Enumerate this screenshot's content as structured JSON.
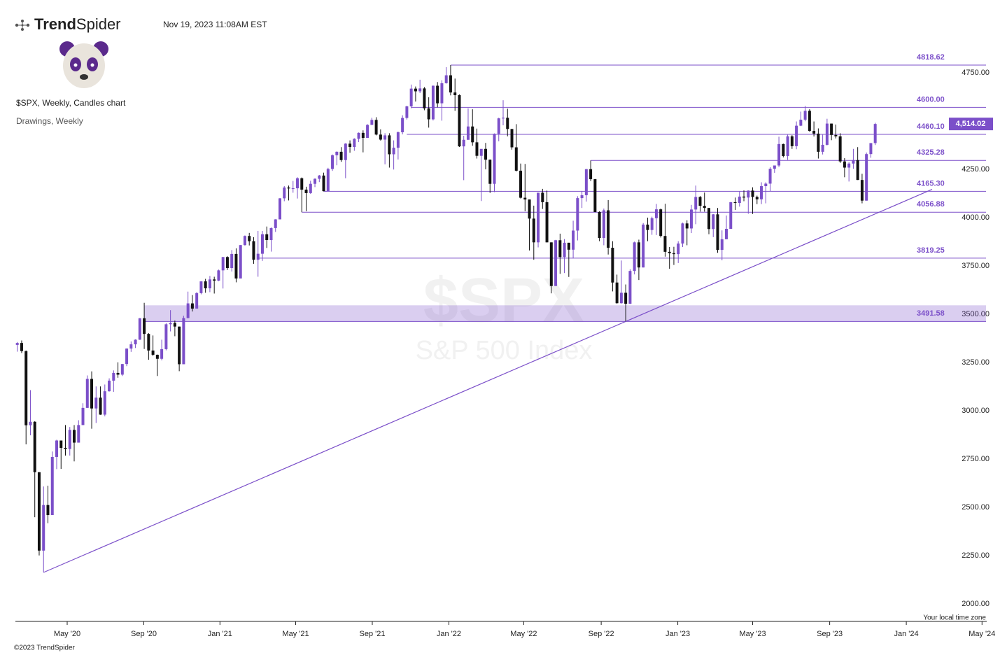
{
  "header": {
    "logo": {
      "bold": "Trend",
      "light": "Spider"
    },
    "timestamp": "Nov 19, 2023 11:08AM EST",
    "chart_name": "$SPX, Weekly, Candles chart",
    "drawings": "Drawings, Weekly",
    "timezone": "Your local time zone",
    "copyright": "©2023 TrendSpider"
  },
  "chart_data": {
    "type": "candlestick",
    "watermark": "$SPX",
    "watermark_sub": "S&P 500 Index",
    "up_color": "#7b4fc9",
    "down_color": "#111111",
    "last_price": {
      "value": 4514.02,
      "label": "4,514.02"
    },
    "ylim": [
      1975,
      4920
    ],
    "yticks": [
      {
        "value": 2000,
        "label": "2000.00"
      },
      {
        "value": 2250,
        "label": "2250.00"
      },
      {
        "value": 2500,
        "label": "2500.00"
      },
      {
        "value": 2750,
        "label": "2750.00"
      },
      {
        "value": 3000,
        "label": "3000.00"
      },
      {
        "value": 3250,
        "label": "3250.00"
      },
      {
        "value": 3500,
        "label": "3500.00"
      },
      {
        "value": 3750,
        "label": "3750.00"
      },
      {
        "value": 4000,
        "label": "4000.00"
      },
      {
        "value": 4250,
        "label": "4250.00"
      },
      {
        "value": 4750,
        "label": "4750.00"
      }
    ],
    "xticks": [
      {
        "value": 11.4,
        "label": "May '20"
      },
      {
        "value": 28.9,
        "label": "Sep '20"
      },
      {
        "value": 46.3,
        "label": "Jan '21"
      },
      {
        "value": 63.6,
        "label": "May '21"
      },
      {
        "value": 81.1,
        "label": "Sep '21"
      },
      {
        "value": 98.6,
        "label": "Jan '22"
      },
      {
        "value": 115.7,
        "label": "May '22"
      },
      {
        "value": 133.4,
        "label": "Sep '22"
      },
      {
        "value": 150.9,
        "label": "Jan '23"
      },
      {
        "value": 168.0,
        "label": "May '23"
      },
      {
        "value": 185.6,
        "label": "Sep '23"
      },
      {
        "value": 203.1,
        "label": "Jan '24"
      },
      {
        "value": 220.4,
        "label": "May '24"
      }
    ],
    "levels": [
      {
        "value": 4818.62,
        "label": "4818.62",
        "start": 99
      },
      {
        "value": 4600,
        "label": "4600.00",
        "start": 90
      },
      {
        "value": 4460.1,
        "label": "4460.10",
        "start": 89
      },
      {
        "value": 4325.28,
        "label": "4325.28",
        "start": 131
      },
      {
        "value": 4165.3,
        "label": "4165.30",
        "start": 70
      },
      {
        "value": 4056.88,
        "label": "4056.88",
        "start": 65
      },
      {
        "value": 3819.25,
        "label": "3819.25",
        "start": 55
      },
      {
        "value": 3491.58,
        "label": "3491.58",
        "start": 29,
        "zone_top": 3575
      }
    ],
    "trendline": {
      "x": [
        6,
        209
      ],
      "y": [
        2192,
        4175.5
      ]
    },
    "candles": [
      [
        3370,
        3385,
        3335,
        3380
      ],
      [
        3380,
        3393,
        3328,
        3338
      ],
      [
        3338,
        3341,
        2855,
        2954
      ],
      [
        2954,
        3136,
        2902,
        2972
      ],
      [
        2972,
        2975,
        2478,
        2711
      ],
      [
        2711,
        2711,
        2280,
        2305
      ],
      [
        2305,
        2637,
        2192,
        2541
      ],
      [
        2541,
        2641,
        2447,
        2489
      ],
      [
        2489,
        2818,
        2489,
        2790
      ],
      [
        2790,
        2879,
        2727,
        2875
      ],
      [
        2875,
        2875,
        2728,
        2837
      ],
      [
        2837,
        2955,
        2797,
        2831
      ],
      [
        2831,
        2945,
        2797,
        2930
      ],
      [
        2930,
        2955,
        2767,
        2864
      ],
      [
        2864,
        2980,
        2864,
        2955
      ],
      [
        2955,
        3068,
        2955,
        3044
      ],
      [
        3044,
        3212,
        3044,
        3194
      ],
      [
        3194,
        3233,
        2936,
        3041
      ],
      [
        3041,
        3155,
        2966,
        3097
      ],
      [
        3097,
        3155,
        3008,
        3009
      ],
      [
        3009,
        3165,
        3000,
        3130
      ],
      [
        3130,
        3197,
        3128,
        3185
      ],
      [
        3185,
        3238,
        3127,
        3225
      ],
      [
        3225,
        3280,
        3200,
        3216
      ],
      [
        3216,
        3272,
        3209,
        3271
      ],
      [
        3271,
        3352,
        3260,
        3351
      ],
      [
        3351,
        3388,
        3334,
        3373
      ],
      [
        3373,
        3399,
        3354,
        3397
      ],
      [
        3397,
        3509,
        3396,
        3508
      ],
      [
        3508,
        3588,
        3349,
        3427
      ],
      [
        3427,
        3431,
        3293,
        3341
      ],
      [
        3341,
        3419,
        3313,
        3319
      ],
      [
        3319,
        3320,
        3209,
        3298
      ],
      [
        3298,
        3397,
        3290,
        3348
      ],
      [
        3348,
        3482,
        3342,
        3477
      ],
      [
        3477,
        3550,
        3440,
        3484
      ],
      [
        3484,
        3496,
        3415,
        3465
      ],
      [
        3465,
        3465,
        3234,
        3270
      ],
      [
        3270,
        3521,
        3270,
        3509
      ],
      [
        3509,
        3646,
        3508,
        3585
      ],
      [
        3585,
        3628,
        3543,
        3558
      ],
      [
        3558,
        3644,
        3558,
        3638
      ],
      [
        3638,
        3699,
        3632,
        3699
      ],
      [
        3699,
        3712,
        3640,
        3663
      ],
      [
        3663,
        3727,
        3643,
        3709
      ],
      [
        3709,
        3723,
        3636,
        3703
      ],
      [
        3703,
        3760,
        3700,
        3756
      ],
      [
        3756,
        3826,
        3662,
        3825
      ],
      [
        3825,
        3829,
        3758,
        3768
      ],
      [
        3768,
        3861,
        3750,
        3841
      ],
      [
        3841,
        3870,
        3694,
        3714
      ],
      [
        3714,
        3887,
        3714,
        3887
      ],
      [
        3887,
        3937,
        3884,
        3934
      ],
      [
        3934,
        3950,
        3885,
        3907
      ],
      [
        3907,
        3928,
        3790,
        3811
      ],
      [
        3811,
        3960,
        3723,
        3842
      ],
      [
        3842,
        3960,
        3805,
        3943
      ],
      [
        3943,
        3983,
        3872,
        3913
      ],
      [
        3913,
        3978,
        3853,
        3975
      ],
      [
        3975,
        4021,
        3955,
        4020
      ],
      [
        4020,
        4130,
        4020,
        4129
      ],
      [
        4129,
        4192,
        4114,
        4185
      ],
      [
        4185,
        4195,
        4118,
        4180
      ],
      [
        4180,
        4219,
        4158,
        4181
      ],
      [
        4181,
        4238,
        4128,
        4233
      ],
      [
        4233,
        4237,
        4057,
        4174
      ],
      [
        4174,
        4189,
        4062,
        4156
      ],
      [
        4156,
        4220,
        4152,
        4204
      ],
      [
        4204,
        4233,
        4187,
        4230
      ],
      [
        4230,
        4250,
        4213,
        4247
      ],
      [
        4247,
        4262,
        4165,
        4166
      ],
      [
        4166,
        4287,
        4165,
        4281
      ],
      [
        4281,
        4356,
        4271,
        4352
      ],
      [
        4352,
        4372,
        4300,
        4370
      ],
      [
        4370,
        4394,
        4318,
        4327
      ],
      [
        4327,
        4415,
        4233,
        4412
      ],
      [
        4412,
        4429,
        4365,
        4395
      ],
      [
        4395,
        4440,
        4375,
        4437
      ],
      [
        4437,
        4470,
        4420,
        4468
      ],
      [
        4468,
        4481,
        4367,
        4442
      ],
      [
        4442,
        4513,
        4442,
        4509
      ],
      [
        4509,
        4546,
        4509,
        4535
      ],
      [
        4535,
        4549,
        4455,
        4459
      ],
      [
        4459,
        4486,
        4428,
        4433
      ],
      [
        4433,
        4466,
        4305,
        4455
      ],
      [
        4455,
        4466,
        4288,
        4357
      ],
      [
        4357,
        4429,
        4278,
        4391
      ],
      [
        4391,
        4475,
        4330,
        4471
      ],
      [
        4471,
        4559,
        4460,
        4545
      ],
      [
        4545,
        4608,
        4537,
        4605
      ],
      [
        4605,
        4718,
        4595,
        4697
      ],
      [
        4697,
        4708,
        4630,
        4683
      ],
      [
        4683,
        4743,
        4674,
        4698
      ],
      [
        4698,
        4705,
        4585,
        4595
      ],
      [
        4595,
        4652,
        4495,
        4538
      ],
      [
        4538,
        4713,
        4532,
        4712
      ],
      [
        4712,
        4731,
        4600,
        4621
      ],
      [
        4621,
        4740,
        4531,
        4725
      ],
      [
        4725,
        4808,
        4723,
        4766
      ],
      [
        4766,
        4819,
        4662,
        4677
      ],
      [
        4677,
        4749,
        4582,
        4663
      ],
      [
        4663,
        4667,
        4395,
        4398
      ],
      [
        4398,
        4453,
        4223,
        4432
      ],
      [
        4432,
        4595,
        4432,
        4501
      ],
      [
        4501,
        4590,
        4401,
        4419
      ],
      [
        4419,
        4490,
        4335,
        4349
      ],
      [
        4349,
        4362,
        4115,
        4385
      ],
      [
        4385,
        4416,
        4279,
        4329
      ],
      [
        4329,
        4330,
        4157,
        4204
      ],
      [
        4204,
        4465,
        4161,
        4463
      ],
      [
        4463,
        4546,
        4424,
        4543
      ],
      [
        4543,
        4637,
        4507,
        4546
      ],
      [
        4546,
        4593,
        4450,
        4488
      ],
      [
        4488,
        4488,
        4381,
        4393
      ],
      [
        4393,
        4513,
        4268,
        4272
      ],
      [
        4272,
        4309,
        4128,
        4132
      ],
      [
        4132,
        4307,
        4062,
        4123
      ],
      [
        4123,
        4123,
        3859,
        4024
      ],
      [
        4024,
        4091,
        3811,
        3901
      ],
      [
        3901,
        4158,
        3875,
        4158
      ],
      [
        4158,
        4178,
        4074,
        4109
      ],
      [
        4109,
        4169,
        3901,
        3901
      ],
      [
        3901,
        3901,
        3637,
        3675
      ],
      [
        3675,
        3914,
        3675,
        3912
      ],
      [
        3912,
        3946,
        3738,
        3825
      ],
      [
        3825,
        3918,
        3742,
        3899
      ],
      [
        3899,
        3899,
        3722,
        3863
      ],
      [
        3863,
        4013,
        3818,
        3962
      ],
      [
        3962,
        4140,
        3911,
        4130
      ],
      [
        4130,
        4167,
        4079,
        4145
      ],
      [
        4145,
        4281,
        4112,
        4280
      ],
      [
        4280,
        4325,
        4218,
        4228
      ],
      [
        4228,
        4229,
        4057,
        4058
      ],
      [
        4058,
        4062,
        3907,
        3924
      ],
      [
        3924,
        4076,
        3886,
        4067
      ],
      [
        4067,
        4120,
        3838,
        3873
      ],
      [
        3873,
        3907,
        3647,
        3693
      ],
      [
        3693,
        3734,
        3584,
        3586
      ],
      [
        3586,
        3807,
        3584,
        3640
      ],
      [
        3640,
        3683,
        3492,
        3583
      ],
      [
        3583,
        3762,
        3582,
        3753
      ],
      [
        3753,
        3905,
        3735,
        3901
      ],
      [
        3901,
        3915,
        3706,
        3771
      ],
      [
        3771,
        4001,
        3771,
        3993
      ],
      [
        3993,
        4029,
        3907,
        3965
      ],
      [
        3965,
        4034,
        3940,
        4026
      ],
      [
        4026,
        4100,
        3939,
        4072
      ],
      [
        4072,
        4076,
        3926,
        3934
      ],
      [
        3934,
        4101,
        3827,
        3852
      ],
      [
        3852,
        3877,
        3764,
        3845
      ],
      [
        3845,
        3878,
        3784,
        3840
      ],
      [
        3840,
        3907,
        3794,
        3895
      ],
      [
        3895,
        4003,
        3877,
        3999
      ],
      [
        3999,
        4015,
        3886,
        3973
      ],
      [
        3973,
        4095,
        3949,
        4071
      ],
      [
        4071,
        4195,
        3995,
        4136
      ],
      [
        4136,
        4141,
        4060,
        4090
      ],
      [
        4090,
        4159,
        4060,
        4079
      ],
      [
        4079,
        4079,
        3943,
        3970
      ],
      [
        3970,
        4048,
        3928,
        4046
      ],
      [
        4046,
        4079,
        3847,
        3862
      ],
      [
        3862,
        3963,
        3808,
        3917
      ],
      [
        3917,
        4040,
        3917,
        3971
      ],
      [
        3971,
        4110,
        3971,
        4109
      ],
      [
        4109,
        4133,
        4069,
        4105
      ],
      [
        4105,
        4164,
        4086,
        4138
      ],
      [
        4138,
        4170,
        4114,
        4133
      ],
      [
        4133,
        4170,
        4049,
        4169
      ],
      [
        4169,
        4186,
        4048,
        4136
      ],
      [
        4136,
        4143,
        4099,
        4124
      ],
      [
        4124,
        4212,
        4099,
        4192
      ],
      [
        4192,
        4212,
        4103,
        4205
      ],
      [
        4205,
        4290,
        4166,
        4282
      ],
      [
        4282,
        4299,
        4261,
        4299
      ],
      [
        4299,
        4448,
        4291,
        4410
      ],
      [
        4410,
        4412,
        4341,
        4348
      ],
      [
        4348,
        4458,
        4328,
        4450
      ],
      [
        4450,
        4456,
        4385,
        4399
      ],
      [
        4399,
        4527,
        4383,
        4505
      ],
      [
        4505,
        4578,
        4503,
        4536
      ],
      [
        4536,
        4607,
        4528,
        4582
      ],
      [
        4582,
        4590,
        4474,
        4478
      ],
      [
        4478,
        4527,
        4449,
        4464
      ],
      [
        4464,
        4491,
        4335,
        4370
      ],
      [
        4370,
        4458,
        4356,
        4406
      ],
      [
        4406,
        4541,
        4403,
        4516
      ],
      [
        4516,
        4516,
        4430,
        4457
      ],
      [
        4457,
        4511,
        4439,
        4450
      ],
      [
        4450,
        4466,
        4312,
        4320
      ],
      [
        4320,
        4337,
        4238,
        4288
      ],
      [
        4288,
        4316,
        4216,
        4309
      ],
      [
        4309,
        4385,
        4282,
        4327
      ],
      [
        4327,
        4394,
        4224,
        4224
      ],
      [
        4224,
        4256,
        4103,
        4117
      ],
      [
        4117,
        4366,
        4117,
        4358
      ],
      [
        4358,
        4415,
        4339,
        4415
      ],
      [
        4415,
        4520,
        4405,
        4514.02
      ]
    ]
  }
}
